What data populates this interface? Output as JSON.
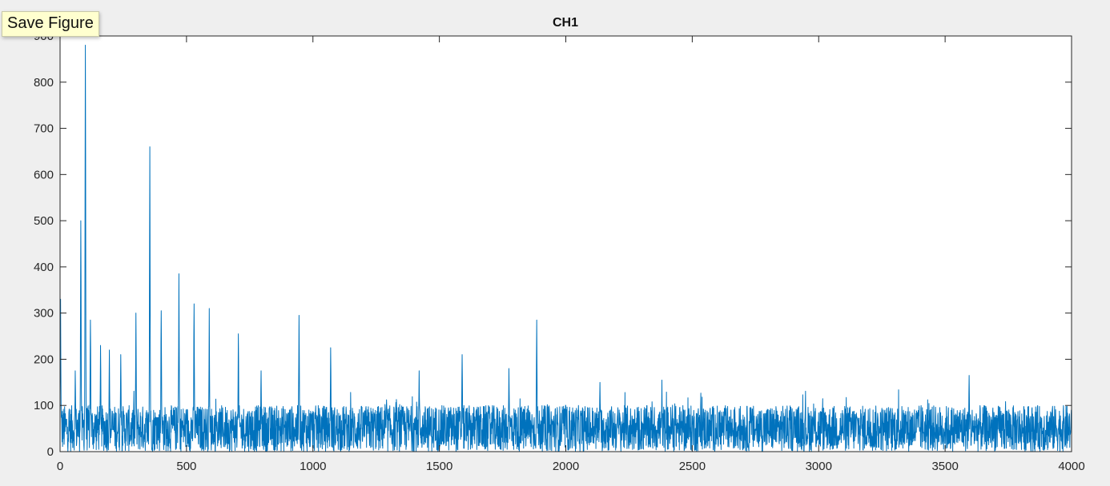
{
  "window": {
    "tooltip": "Save Figure"
  },
  "colors": {
    "series": "#0072BD",
    "axes_background": "#ffffff",
    "figure_background": "#efefef",
    "axis_line": "#262626"
  },
  "chart_data": {
    "type": "line",
    "title": "CH1",
    "xlabel": "",
    "ylabel": "",
    "xlim": [
      0,
      4000
    ],
    "ylim": [
      0,
      900
    ],
    "xticks": [
      0,
      500,
      1000,
      1500,
      2000,
      2500,
      3000,
      3500,
      4000
    ],
    "xtick_labels": [
      "0",
      "500",
      "1000",
      "1500",
      "2000",
      "2500",
      "3000",
      "3500",
      "4000"
    ],
    "yticks": [
      0,
      100,
      200,
      300,
      400,
      500,
      600,
      700,
      800,
      900
    ],
    "ytick_labels": [
      "0",
      "100",
      "200",
      "300",
      "400",
      "500",
      "600",
      "700",
      "800",
      "900"
    ],
    "grid": false,
    "legend": "none",
    "series_color": "#0072BD",
    "baseline_band": [
      0,
      100
    ],
    "peaks": [
      {
        "x": 2,
        "y": 330
      },
      {
        "x": 60,
        "y": 175
      },
      {
        "x": 82,
        "y": 500
      },
      {
        "x": 100,
        "y": 880
      },
      {
        "x": 120,
        "y": 285
      },
      {
        "x": 160,
        "y": 230
      },
      {
        "x": 195,
        "y": 220
      },
      {
        "x": 240,
        "y": 210
      },
      {
        "x": 300,
        "y": 300
      },
      {
        "x": 355,
        "y": 660
      },
      {
        "x": 400,
        "y": 305
      },
      {
        "x": 470,
        "y": 385
      },
      {
        "x": 530,
        "y": 320
      },
      {
        "x": 590,
        "y": 310
      },
      {
        "x": 705,
        "y": 255
      },
      {
        "x": 795,
        "y": 175
      },
      {
        "x": 945,
        "y": 295
      },
      {
        "x": 1070,
        "y": 225
      },
      {
        "x": 1420,
        "y": 175
      },
      {
        "x": 1590,
        "y": 210
      },
      {
        "x": 1775,
        "y": 180
      },
      {
        "x": 1885,
        "y": 285
      },
      {
        "x": 2135,
        "y": 150
      },
      {
        "x": 2380,
        "y": 155
      },
      {
        "x": 3595,
        "y": 165
      }
    ]
  }
}
